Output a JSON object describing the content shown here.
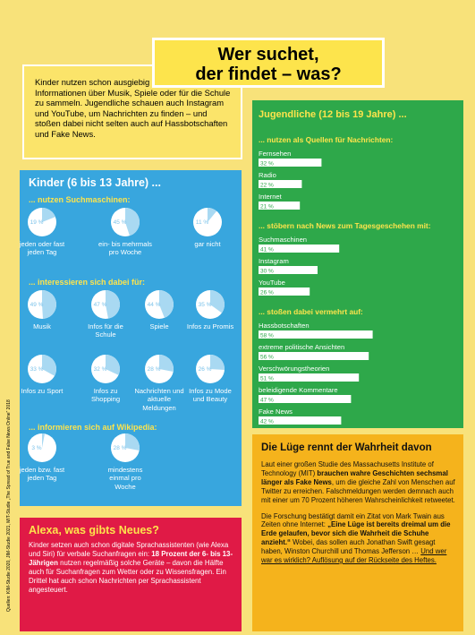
{
  "title": [
    "Wer suchet,",
    "der findet – was?"
  ],
  "intro": "Kinder nutzen schon ausgiebig Suchmaschinen, um Informationen über Musik, Spiele oder für die Schule zu sammeln. Jugendliche schauen auch Instagram und YouTube, um Nachrichten zu finden – und stoßen dabei nicht selten auch auf Hassbotschaften und Fake News.",
  "kids": {
    "heading": "Kinder (6 bis 13 Jahre) ...",
    "sections": [
      {
        "heading": "... nutzen Suchmaschinen:",
        "items": [
          {
            "value": 19,
            "label": "19 %",
            "caption": "jeden oder fast jeden Tag"
          },
          {
            "value": 45,
            "label": "45 %",
            "caption": "ein- bis mehrmals pro Woche"
          },
          {
            "value": 11,
            "label": "11 %",
            "caption": "gar nicht"
          }
        ]
      },
      {
        "heading": "... interessieren sich dabei für:",
        "items": [
          {
            "value": 49,
            "label": "49 %",
            "caption": "Musik"
          },
          {
            "value": 47,
            "label": "47 %",
            "caption": "Infos für die Schule"
          },
          {
            "value": 44,
            "label": "44 %",
            "caption": "Spiele"
          },
          {
            "value": 35,
            "label": "35 %",
            "caption": "Infos zu Promis"
          },
          {
            "value": 33,
            "label": "33 %",
            "caption": "Infos zu Sport"
          },
          {
            "value": 32,
            "label": "32 %",
            "caption": "Infos zu Shopping"
          },
          {
            "value": 28,
            "label": "28 %",
            "caption": "Nachrichten und aktuelle Meldungen"
          },
          {
            "value": 26,
            "label": "26 %",
            "caption": "Infos zu Mode und Beauty"
          }
        ]
      },
      {
        "heading": "... informieren sich auf Wikipedia:",
        "items": [
          {
            "value": 3,
            "label": "3 %",
            "caption": "jeden bzw. fast jeden Tag"
          },
          {
            "value": 28,
            "label": "28 %",
            "caption": "mindestens einmal pro Woche"
          }
        ]
      }
    ]
  },
  "teens": {
    "heading": "Jugendliche (12 bis 19 Jahre) ...",
    "sections": [
      {
        "heading": "... nutzen als Quellen für Nachrichten:",
        "items": [
          {
            "name": "Fernsehen",
            "value": 32,
            "label": "32 %"
          },
          {
            "name": "Radio",
            "value": 22,
            "label": "22 %"
          },
          {
            "name": "Internet",
            "value": 21,
            "label": "21 %"
          }
        ]
      },
      {
        "heading": "... stöbern nach News zum Tagesgeschehen mit:",
        "items": [
          {
            "name": "Suchmaschinen",
            "value": 41,
            "label": "41 %"
          },
          {
            "name": "Instagram",
            "value": 30,
            "label": "30 %"
          },
          {
            "name": "YouTube",
            "value": 26,
            "label": "26 %"
          }
        ]
      },
      {
        "heading": "... stoßen dabei vermehrt auf:",
        "items": [
          {
            "name": "Hassbotschaften",
            "value": 58,
            "label": "58 %"
          },
          {
            "name": "extreme politische Ansichten",
            "value": 56,
            "label": "56 %"
          },
          {
            "name": "Verschwörungstheorien",
            "value": 51,
            "label": "51 %"
          },
          {
            "name": "beleidigende Kommentare",
            "value": 47,
            "label": "47 %"
          },
          {
            "name": "Fake News",
            "value": 42,
            "label": "42 %"
          }
        ]
      }
    ]
  },
  "lie": {
    "heading": "Die Lüge rennt der Wahrheit davon",
    "paragraphs": [
      [
        {
          "text": "Laut einer großen Studie des Massachusetts Institute of Technology (MIT) "
        },
        {
          "text": "brauchen wahre Geschichten sechsmal länger als Fake News",
          "style": "bold"
        },
        {
          "text": ", um die gleiche Zahl von Menschen auf Twitter zu erreichen. Falschmeldungen werden demnach auch mit einer um 70 Prozent höheren Wahrscheinlichkeit retweetet."
        }
      ],
      [
        {
          "text": "Die Forschung bestätigt damit ein Zitat von Mark Twain aus Zeiten ohne Internet: "
        },
        {
          "text": "„Eine Lüge ist bereits dreimal um die Erde gelaufen, bevor sich die Wahrheit die Schuhe anzieht.“",
          "style": "bold"
        },
        {
          "text": " Wobei, das sollen auch Jonathan Swift gesagt haben, Winston Churchill und Thomas Jefferson … "
        },
        {
          "text": "Und wer war es wirklich? Auflösung auf der Rückseite des Heftes.",
          "style": "underline"
        }
      ]
    ]
  },
  "alexa": {
    "heading": "Alexa, was gibts Neues?",
    "paragraphs": [
      [
        {
          "text": "Kinder setzen auch schon digitale Sprachassistenten (wie Alexa und Siri) für verbale Suchanfragen ein: "
        },
        {
          "text": "18 Prozent der 6- bis 13-Jährigen",
          "style": "bold"
        },
        {
          "text": " nutzen regelmäßig solche Geräte – davon die Hälfte auch für Suchanfragen zum Wetter oder zu Wissensfragen. Ein Drittel hat auch schon Nachrichten per Sprachassistent angesteuert."
        }
      ]
    ]
  },
  "sources": "Quellen: KIM-Studie 2020, JIM-Studie 2021, MIT-Studie „The Spread of True and False News Online“ 2018"
}
